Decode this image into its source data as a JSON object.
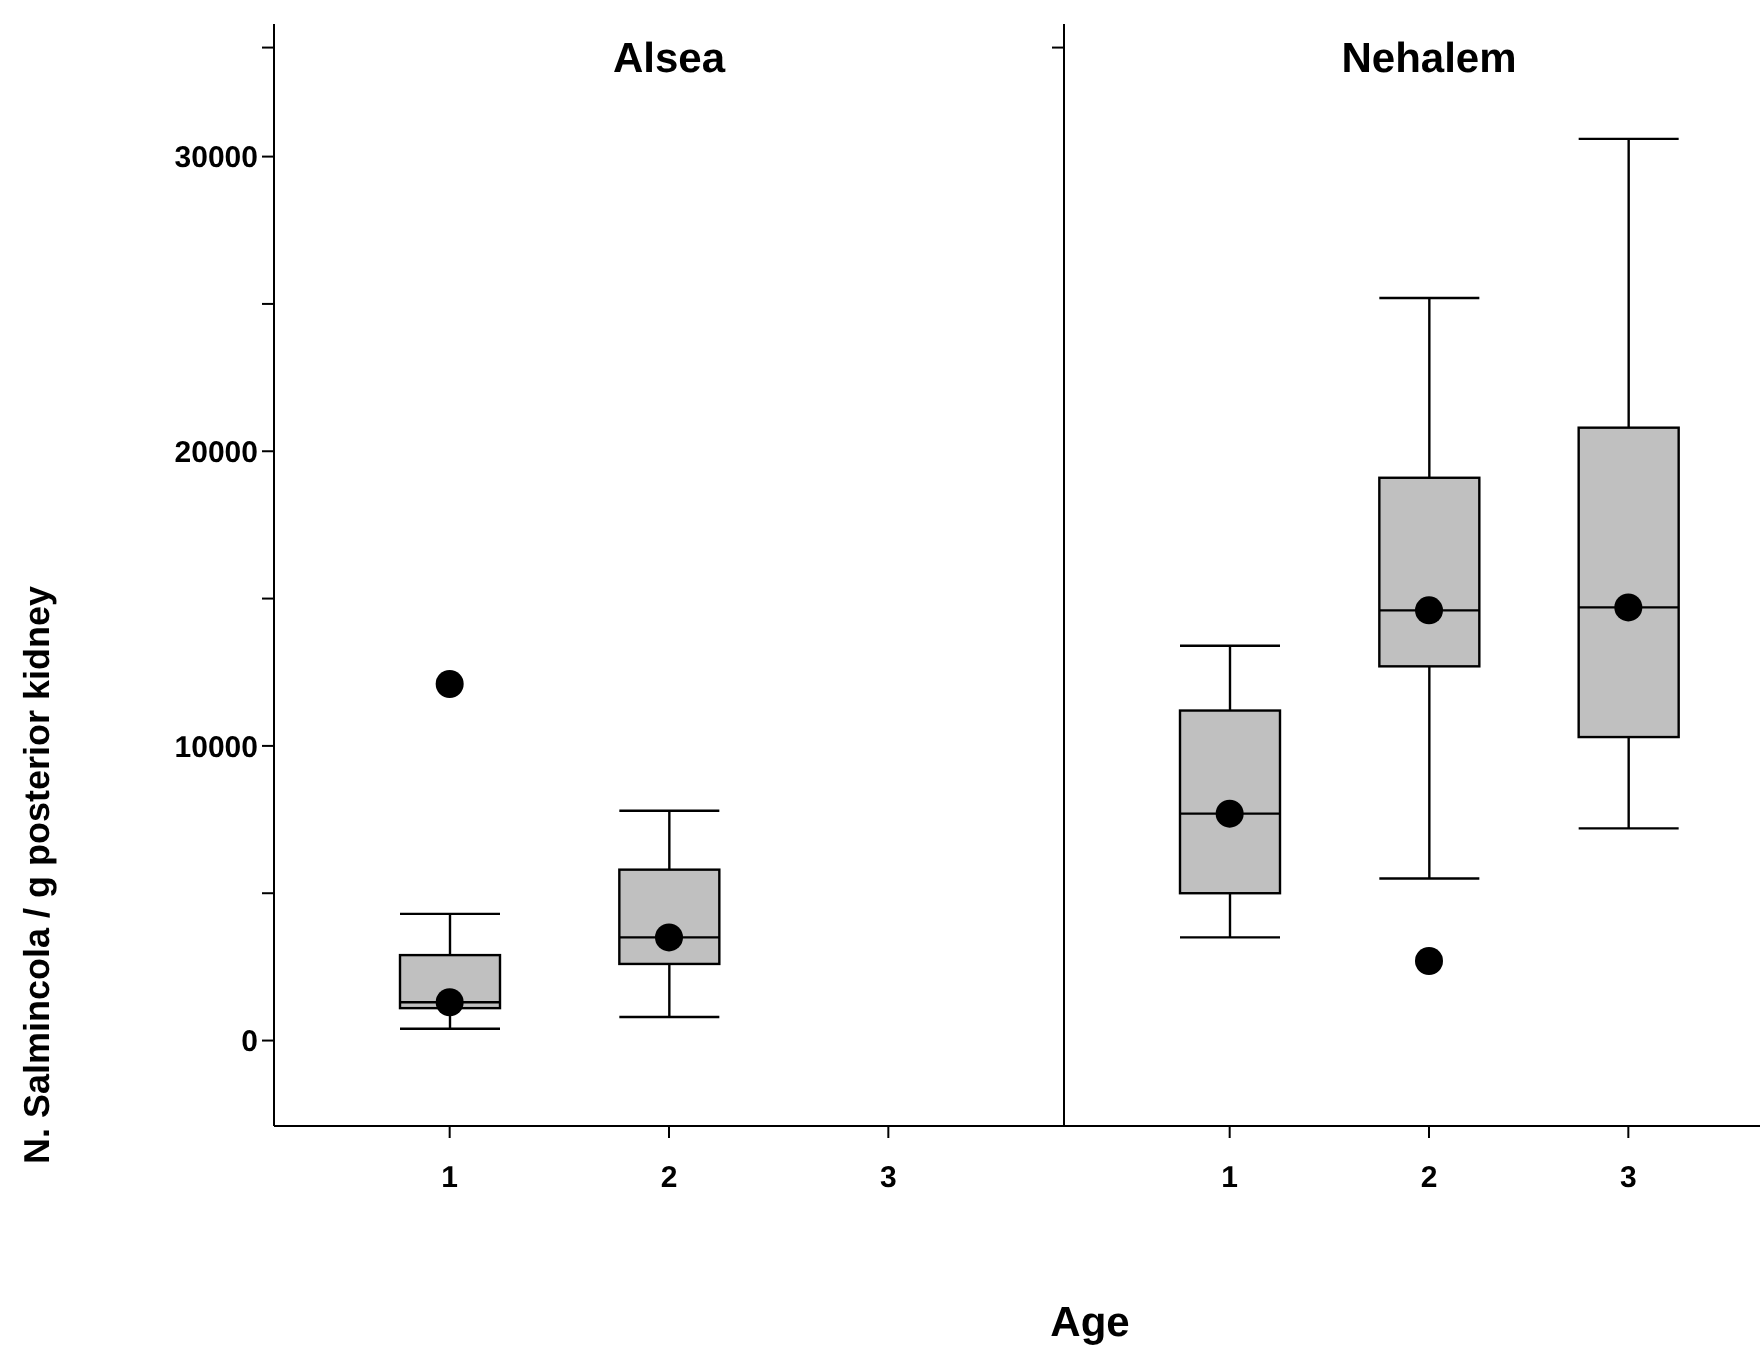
{
  "chart_data": [
    {
      "type": "box",
      "title": "Alsea",
      "ylabel": "N. Salmincola / g  posterior kidney",
      "categories": [
        "1",
        "2",
        "3"
      ],
      "boxes": [
        {
          "low": 400,
          "q1": 1100,
          "median": 1300,
          "q3": 2900,
          "high": 4300,
          "mean": 1300,
          "outliers": [
            12100
          ]
        },
        {
          "low": 800,
          "q1": 2600,
          "median": 3500,
          "q3": 5800,
          "high": 7800,
          "mean": 3500
        },
        null
      ],
      "color": "#c0c0c0",
      "ylim": [
        -2900,
        34500
      ],
      "yticks": [
        0,
        {
          "value": 5000,
          "label": null
        },
        10000,
        {
          "value": 15000,
          "label": null
        },
        20000,
        {
          "value": 25000,
          "label": null
        },
        30000,
        {
          "value": 33700,
          "label": null
        }
      ]
    },
    {
      "type": "box",
      "title": "Nehalem",
      "xlabel": "Age",
      "categories": [
        "1",
        "2",
        "3"
      ],
      "boxes": [
        {
          "low": 3500,
          "q1": 5000,
          "median": 7700,
          "q3": 11200,
          "high": 13400,
          "mean": 7700
        },
        {
          "low": 5500,
          "q1": 12700,
          "median": 14600,
          "q3": 19100,
          "high": 25200,
          "mean": 14600,
          "outliers": [
            2700
          ]
        },
        {
          "low": 7200,
          "q1": 10300,
          "median": 14700,
          "q3": 20800,
          "high": 30600,
          "mean": 14700
        }
      ],
      "color": "#c0c0c0",
      "ylim": [
        -2900,
        34500
      ],
      "yticks": [
        {
          "value": 33700,
          "label": null
        }
      ],
      "tick_labels": "x"
    }
  ]
}
